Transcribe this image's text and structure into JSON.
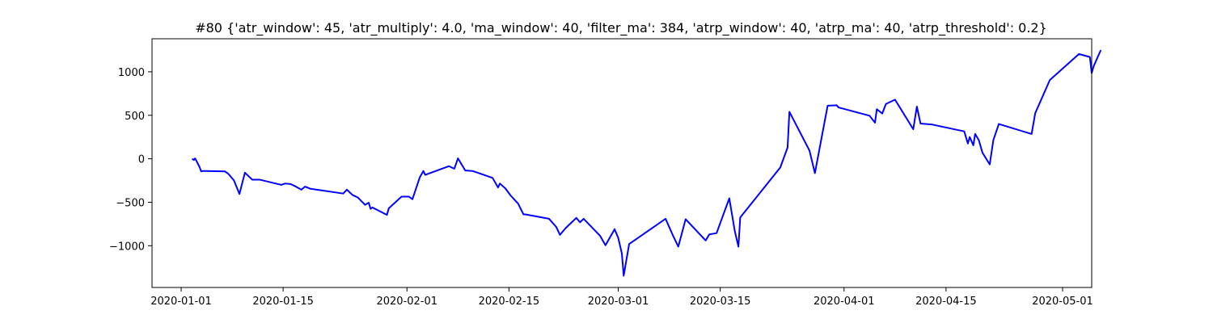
{
  "chart_data": {
    "type": "line",
    "title": "#80 {'atr_window': 45, 'atr_multiply': 4.0, 'ma_window': 40, 'filter_ma': 384, 'atrp_window': 40, 'atrp_ma': 40, 'atrp_threshold': 0.2}",
    "xlabel": "",
    "ylabel": "",
    "x_scale": "date",
    "xlim": [
      "2019-12-28",
      "2020-05-05"
    ],
    "ylim": [
      -1480,
      1380
    ],
    "grid": false,
    "x_ticks": [
      "2020-01-01",
      "2020-01-15",
      "2020-02-01",
      "2020-02-15",
      "2020-03-01",
      "2020-03-15",
      "2020-04-01",
      "2020-04-15",
      "2020-05-01"
    ],
    "y_ticks": [
      -1000,
      -500,
      0,
      500,
      1000
    ],
    "x_tick_labels": [
      "2020-01-01",
      "2020-01-15",
      "2020-02-01",
      "2020-02-15",
      "2020-03-01",
      "2020-03-15",
      "2020-04-01",
      "2020-04-15",
      "2020-05-01"
    ],
    "y_tick_labels": [
      "−1000",
      "−500",
      "0",
      "500",
      "1000"
    ],
    "series": [
      {
        "color": "#0000ff",
        "points": [
          [
            "2020-01-02 12:00",
            0
          ],
          [
            "2020-01-02 18:00",
            -15
          ],
          [
            "2020-01-02 22:00",
            5
          ],
          [
            "2020-01-03 06:00",
            -50
          ],
          [
            "2020-01-03 12:00",
            -90
          ],
          [
            "2020-01-03 18:00",
            -145
          ],
          [
            "2020-01-04 00:00",
            -140
          ],
          [
            "2020-01-07 00:00",
            -145
          ],
          [
            "2020-01-07 12:00",
            -175
          ],
          [
            "2020-01-08 06:00",
            -250
          ],
          [
            "2020-01-09 00:00",
            -405
          ],
          [
            "2020-01-09 18:00",
            -160
          ],
          [
            "2020-01-10 18:00",
            -240
          ],
          [
            "2020-01-11 18:00",
            -240
          ],
          [
            "2020-01-14 18:00",
            -300
          ],
          [
            "2020-01-15 06:00",
            -285
          ],
          [
            "2020-01-16 00:00",
            -290
          ],
          [
            "2020-01-16 18:00",
            -320
          ],
          [
            "2020-01-17 12:00",
            -355
          ],
          [
            "2020-01-18 00:00",
            -320
          ],
          [
            "2020-01-18 18:00",
            -345
          ],
          [
            "2020-01-23 06:00",
            -400
          ],
          [
            "2020-01-23 18:00",
            -355
          ],
          [
            "2020-01-24 12:00",
            -415
          ],
          [
            "2020-01-25 06:00",
            -445
          ],
          [
            "2020-01-26 06:00",
            -530
          ],
          [
            "2020-01-26 18:00",
            -505
          ],
          [
            "2020-01-27 00:00",
            -575
          ],
          [
            "2020-01-27 06:00",
            -560
          ],
          [
            "2020-01-29 06:00",
            -645
          ],
          [
            "2020-01-29 12:00",
            -570
          ],
          [
            "2020-01-31 06:00",
            -435
          ],
          [
            "2020-02-01 06:00",
            -435
          ],
          [
            "2020-02-01 18:00",
            -465
          ],
          [
            "2020-02-02 18:00",
            -215
          ],
          [
            "2020-02-03 06:00",
            -140
          ],
          [
            "2020-02-03 12:00",
            -185
          ],
          [
            "2020-02-06 18:00",
            -85
          ],
          [
            "2020-02-07 12:00",
            -115
          ],
          [
            "2020-02-08 00:00",
            5
          ],
          [
            "2020-02-09 00:00",
            -135
          ],
          [
            "2020-02-10 00:00",
            -140
          ],
          [
            "2020-02-12 18:00",
            -220
          ],
          [
            "2020-02-13 12:00",
            -330
          ],
          [
            "2020-02-13 18:00",
            -285
          ],
          [
            "2020-02-14 12:00",
            -340
          ],
          [
            "2020-02-15 06:00",
            -425
          ],
          [
            "2020-02-16 06:00",
            -515
          ],
          [
            "2020-02-17 00:00",
            -640
          ],
          [
            "2020-02-17 06:00",
            -640
          ],
          [
            "2020-02-20 12:00",
            -690
          ],
          [
            "2020-02-21 12:00",
            -785
          ],
          [
            "2020-02-22 00:00",
            -875
          ],
          [
            "2020-02-22 18:00",
            -800
          ],
          [
            "2020-02-24 06:00",
            -680
          ],
          [
            "2020-02-24 18:00",
            -730
          ],
          [
            "2020-02-25 06:00",
            -690
          ],
          [
            "2020-02-27 12:00",
            -885
          ],
          [
            "2020-02-28 06:00",
            -995
          ],
          [
            "2020-02-29 12:00",
            -810
          ],
          [
            "2020-03-01 00:00",
            -910
          ],
          [
            "2020-03-01 12:00",
            -1090
          ],
          [
            "2020-03-01 18:00",
            -1345
          ],
          [
            "2020-03-02 12:00",
            -980
          ],
          [
            "2020-03-07 12:00",
            -690
          ],
          [
            "2020-03-08 12:00",
            -880
          ],
          [
            "2020-03-09 06:00",
            -1010
          ],
          [
            "2020-03-10 06:00",
            -695
          ],
          [
            "2020-03-13 00:00",
            -940
          ],
          [
            "2020-03-13 12:00",
            -870
          ],
          [
            "2020-03-14 12:00",
            -855
          ],
          [
            "2020-03-16 06:00",
            -455
          ],
          [
            "2020-03-17 00:00",
            -830
          ],
          [
            "2020-03-17 12:00",
            -1010
          ],
          [
            "2020-03-17 18:00",
            -675
          ],
          [
            "2020-03-23 06:00",
            -100
          ],
          [
            "2020-03-24 06:00",
            130
          ],
          [
            "2020-03-24 12:00",
            540
          ],
          [
            "2020-03-27 06:00",
            95
          ],
          [
            "2020-03-28 00:00",
            -165
          ],
          [
            "2020-03-29 18:00",
            610
          ],
          [
            "2020-03-31 00:00",
            615
          ],
          [
            "2020-03-31 06:00",
            590
          ],
          [
            "2020-04-04 12:00",
            495
          ],
          [
            "2020-04-05 06:00",
            415
          ],
          [
            "2020-04-05 12:00",
            570
          ],
          [
            "2020-04-06 06:00",
            520
          ],
          [
            "2020-04-06 18:00",
            630
          ],
          [
            "2020-04-08 00:00",
            680
          ],
          [
            "2020-04-10 12:00",
            340
          ],
          [
            "2020-04-11 00:00",
            600
          ],
          [
            "2020-04-11 12:00",
            405
          ],
          [
            "2020-04-13 00:00",
            395
          ],
          [
            "2020-04-17 12:00",
            315
          ],
          [
            "2020-04-18 00:00",
            175
          ],
          [
            "2020-04-18 06:00",
            250
          ],
          [
            "2020-04-18 18:00",
            155
          ],
          [
            "2020-04-19 00:00",
            285
          ],
          [
            "2020-04-19 12:00",
            215
          ],
          [
            "2020-04-20 00:00",
            70
          ],
          [
            "2020-04-21 00:00",
            -65
          ],
          [
            "2020-04-21 12:00",
            215
          ],
          [
            "2020-04-22 06:00",
            400
          ],
          [
            "2020-04-26 18:00",
            285
          ],
          [
            "2020-04-27 06:00",
            525
          ],
          [
            "2020-04-29 06:00",
            905
          ],
          [
            "2020-05-03 06:00",
            1205
          ],
          [
            "2020-05-04 18:00",
            1170
          ],
          [
            "2020-05-05 00:00",
            985
          ],
          [
            "2020-05-05 06:00",
            1060
          ],
          [
            "2020-05-06 06:00",
            1250
          ]
        ]
      }
    ]
  }
}
